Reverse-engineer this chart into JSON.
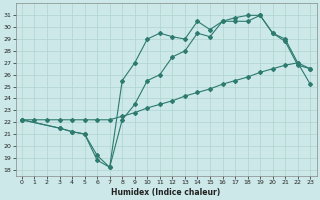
{
  "xlabel": "Humidex (Indice chaleur)",
  "bg_color": "#cce8e8",
  "line_color": "#2d7a6e",
  "grid_color": "#b0d4d0",
  "ylim": [
    17.5,
    32.0
  ],
  "xlim": [
    -0.5,
    23.5
  ],
  "yticks": [
    18,
    19,
    20,
    21,
    22,
    23,
    24,
    25,
    26,
    27,
    28,
    29,
    30,
    31
  ],
  "xticks": [
    0,
    1,
    2,
    3,
    4,
    5,
    6,
    7,
    8,
    9,
    10,
    11,
    12,
    13,
    14,
    15,
    16,
    17,
    18,
    19,
    20,
    21,
    22,
    23
  ],
  "line_bottom_x": [
    0,
    1,
    2,
    3,
    4,
    5,
    6,
    7,
    8,
    9,
    10,
    11,
    12,
    13,
    14,
    15,
    16,
    17,
    18,
    19,
    20,
    21,
    22,
    23
  ],
  "line_bottom_y": [
    22.2,
    22.2,
    22.2,
    22.2,
    22.2,
    22.2,
    22.2,
    22.2,
    22.5,
    22.8,
    23.2,
    23.5,
    23.8,
    24.2,
    24.5,
    24.8,
    25.2,
    25.5,
    25.8,
    26.2,
    26.5,
    26.8,
    27.0,
    25.2
  ],
  "line_mid_x": [
    0,
    3,
    4,
    5,
    6,
    7,
    8,
    9,
    10,
    11,
    12,
    13,
    14,
    15,
    16,
    17,
    18,
    19,
    20,
    21,
    22,
    23
  ],
  "line_mid_y": [
    22.2,
    21.5,
    21.2,
    21.0,
    18.8,
    18.2,
    22.2,
    23.5,
    25.5,
    26.0,
    27.5,
    28.0,
    29.5,
    29.2,
    30.5,
    30.5,
    30.5,
    31.0,
    29.5,
    28.8,
    26.8,
    26.5
  ],
  "line_top_x": [
    0,
    3,
    4,
    5,
    6,
    7,
    8,
    9,
    10,
    11,
    12,
    13,
    14,
    15,
    16,
    17,
    18,
    19,
    20,
    21,
    22,
    23
  ],
  "line_top_y": [
    22.2,
    21.5,
    21.2,
    21.0,
    19.2,
    18.2,
    25.5,
    27.0,
    29.0,
    29.5,
    29.2,
    29.0,
    30.5,
    29.8,
    30.5,
    30.8,
    31.0,
    31.0,
    29.5,
    29.0,
    27.0,
    26.5
  ]
}
